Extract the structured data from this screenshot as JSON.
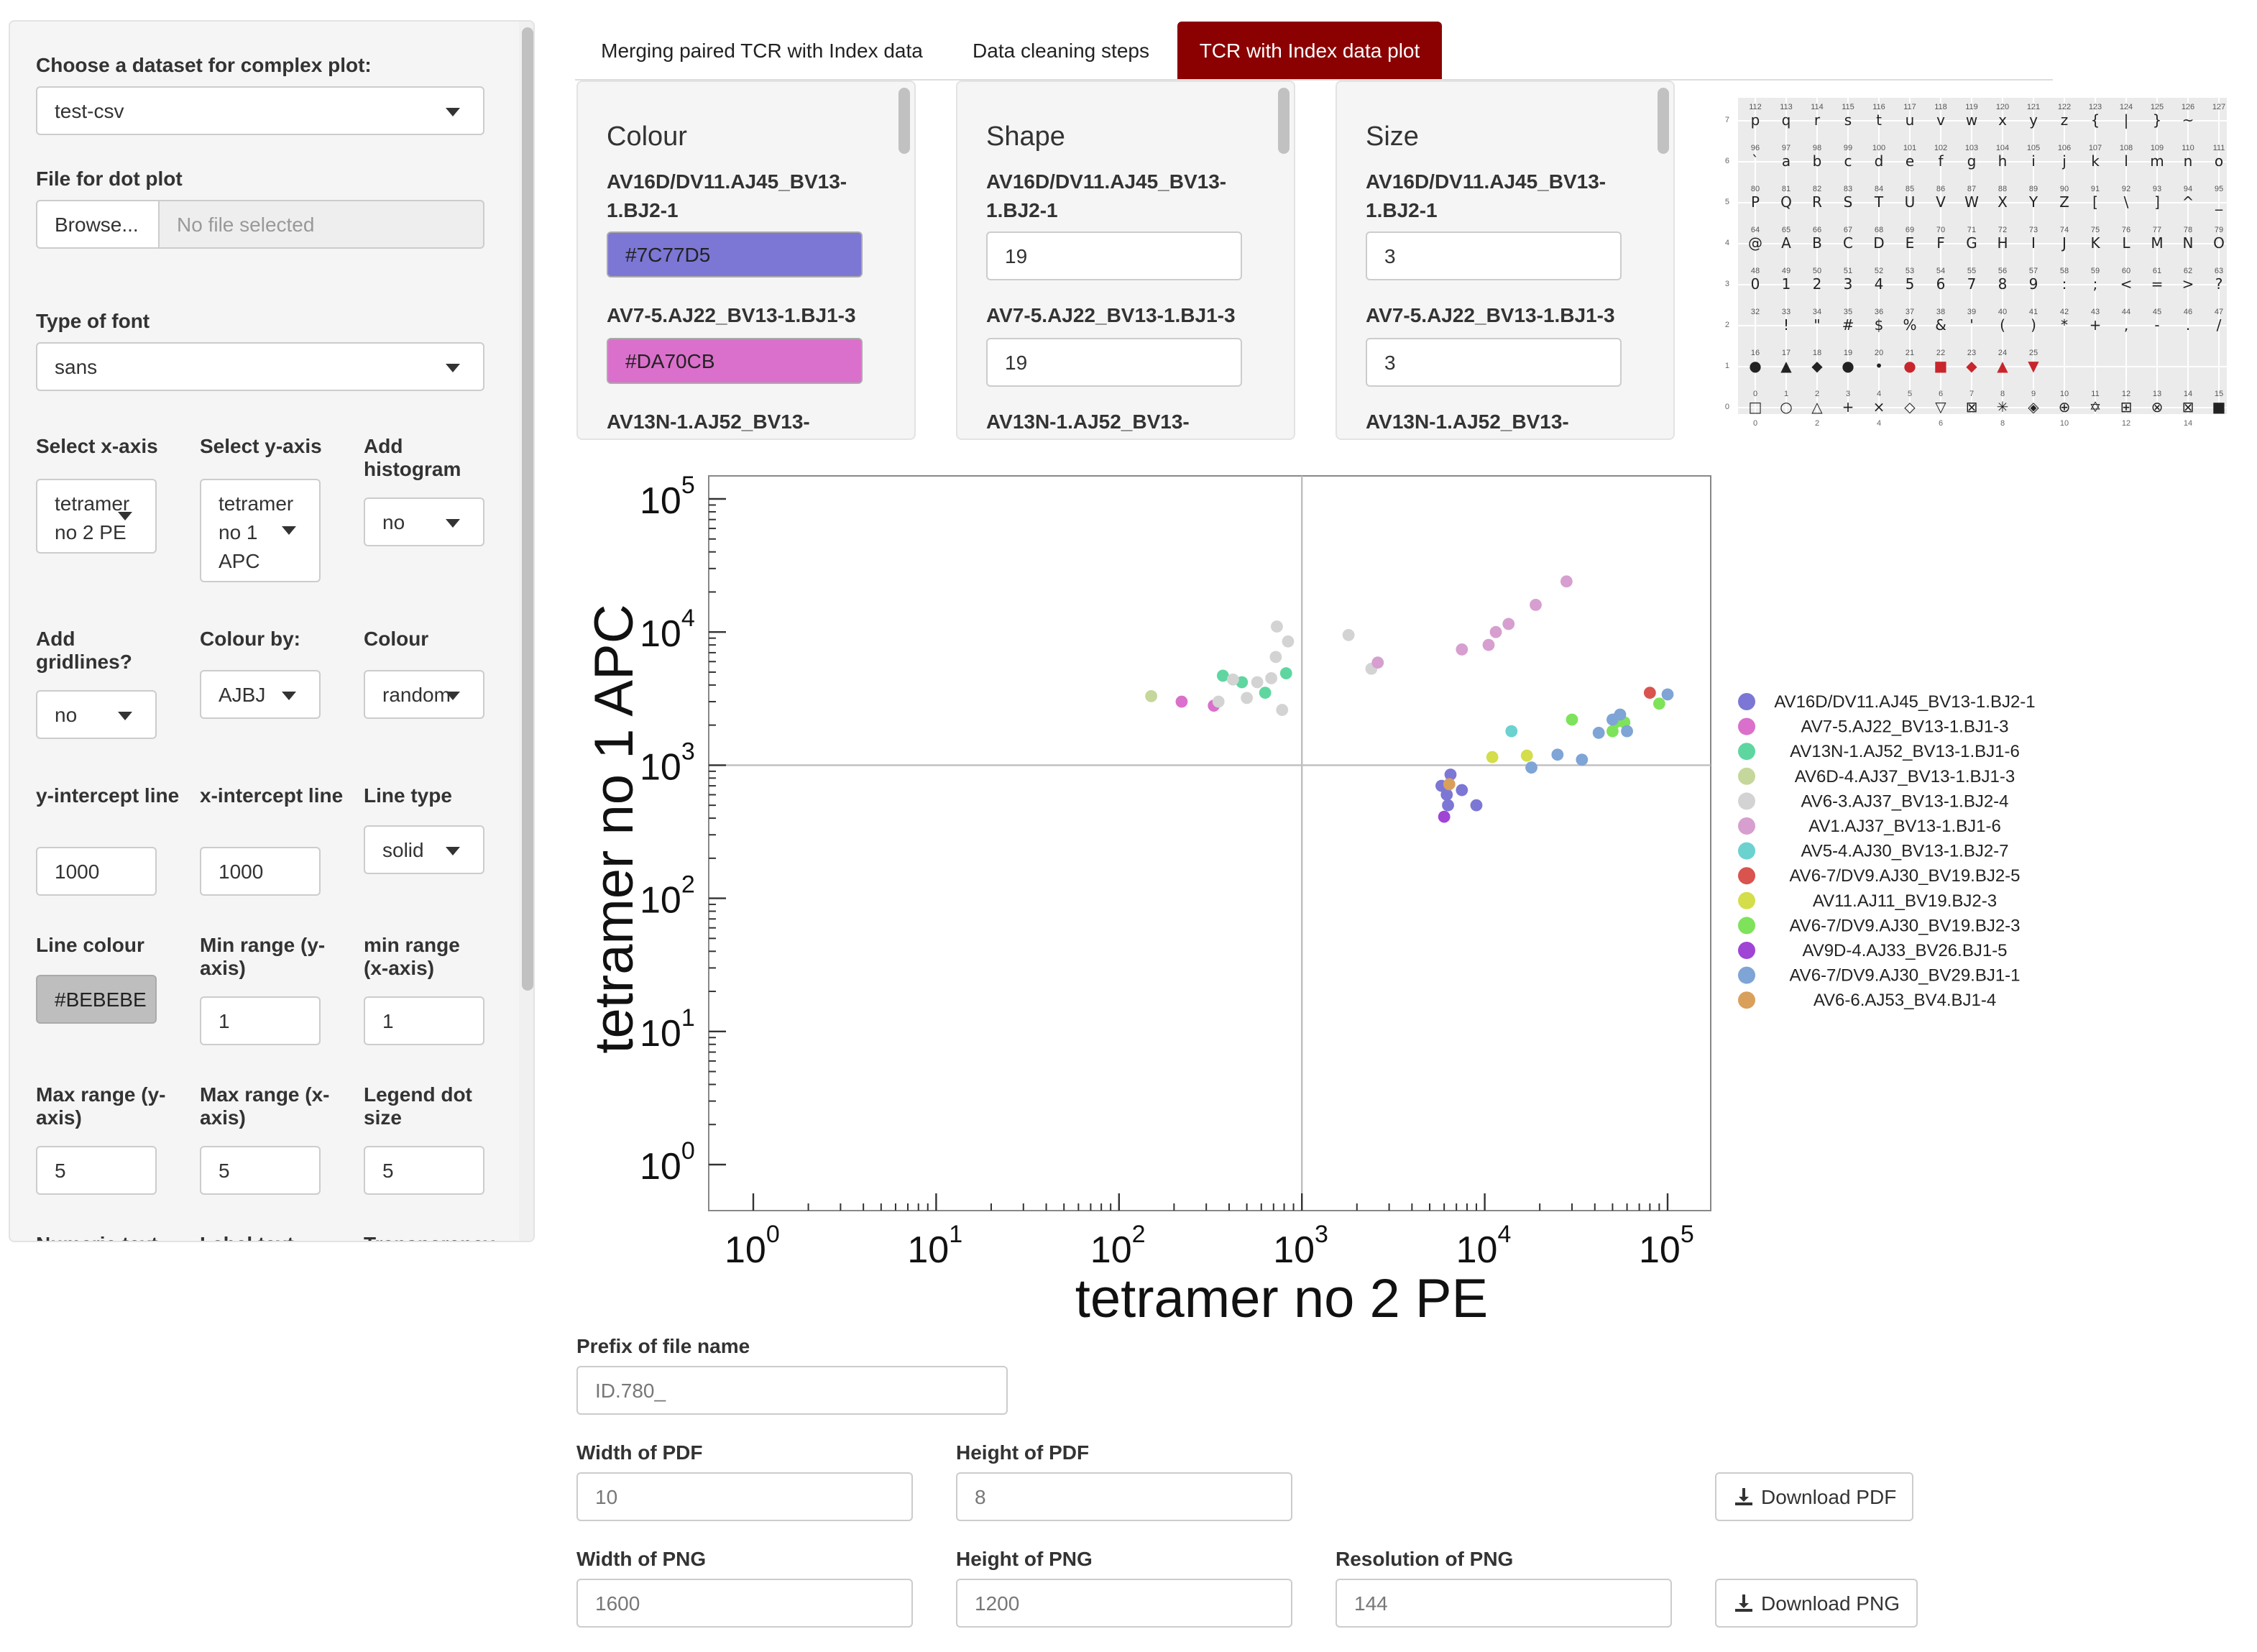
{
  "sidebar": {
    "dataset_label": "Choose a dataset for complex plot:",
    "dataset_value": "test-csv",
    "dotplot_label": "File for dot plot",
    "browse_label": "Browse...",
    "file_placeholder": "No file selected",
    "font_label": "Type of font",
    "font_value": "sans",
    "xaxis_label": "Select x-axis",
    "xaxis_value": "tetramer no 2 PE",
    "yaxis_label": "Select y-axis",
    "yaxis_value": "tetramer no 1 APC",
    "hist_label": "Add histogram",
    "hist_value": "no",
    "grid_label": "Add gridlines?",
    "grid_value": "no",
    "colourby_label": "Colour by:",
    "colourby_value": "AJBJ",
    "colour_label": "Colour",
    "colour_value": "random",
    "yint_label": "y-intercept line",
    "yint_value": "1000",
    "xint_label": "x-intercept line",
    "xint_value": "1000",
    "linetype_label": "Line type",
    "linetype_value": "solid",
    "linecolour_label": "Line colour",
    "linecolour_value": "#BEBEBE",
    "miny_label": "Min range (y-axis)",
    "miny_value": "1",
    "minx_label": "min range (x-axis)",
    "minx_value": "1",
    "maxy_label": "Max range (y-axis)",
    "maxy_value": "5",
    "maxx_label": "Max range (x-axis)",
    "maxx_value": "5",
    "legdot_label": "Legend dot size",
    "legdot_value": "5",
    "cut1": "Numeric text",
    "cut2": "Label text",
    "cut3": "Transparency"
  },
  "tabs": [
    "Merging paired TCR with Index data",
    "Data cleaning steps",
    "TCR with Index data plot"
  ],
  "panels": {
    "colour": {
      "title": "Colour",
      "items": [
        {
          "label": "AV16D/DV11.AJ45_BV13-1.BJ2-1",
          "value": "#7C77D5",
          "color": "#7C77D5"
        },
        {
          "label": "AV7-5.AJ22_BV13-1.BJ1-3",
          "value": "#DA70CB",
          "color": "#DA70CB"
        }
      ],
      "cut": "AV13N-1.AJ52_BV13-"
    },
    "shape": {
      "title": "Shape",
      "items": [
        {
          "label": "AV16D/DV11.AJ45_BV13-1.BJ2-1",
          "value": "19"
        },
        {
          "label": "AV7-5.AJ22_BV13-1.BJ1-3",
          "value": "19"
        }
      ],
      "cut": "AV13N-1.AJ52_BV13-"
    },
    "size": {
      "title": "Size",
      "items": [
        {
          "label": "AV16D/DV11.AJ45_BV13-1.BJ2-1",
          "value": "3"
        },
        {
          "label": "AV7-5.AJ22_BV13-1.BJ1-3",
          "value": "3"
        }
      ],
      "cut": "AV13N-1.AJ52_BV13-"
    }
  },
  "pch_ref": {
    "row_labels": [
      "7",
      "6",
      "5",
      "4",
      "3",
      "2",
      "1",
      "0"
    ],
    "col_labels": [
      "0",
      "2",
      "4",
      "6",
      "8",
      "10",
      "12",
      "14"
    ],
    "rows": [
      {
        "nums": [
          "112",
          "113",
          "114",
          "115",
          "116",
          "117",
          "118",
          "119",
          "120",
          "121",
          "122",
          "123",
          "124",
          "125",
          "126",
          "127"
        ],
        "chars": [
          "p",
          "q",
          "r",
          "s",
          "t",
          "u",
          "v",
          "w",
          "x",
          "y",
          "z",
          "{",
          "|",
          "}",
          "~",
          ""
        ]
      },
      {
        "nums": [
          "96",
          "97",
          "98",
          "99",
          "100",
          "101",
          "102",
          "103",
          "104",
          "105",
          "106",
          "107",
          "108",
          "109",
          "110",
          "111"
        ],
        "chars": [
          "`",
          "a",
          "b",
          "c",
          "d",
          "e",
          "f",
          "g",
          "h",
          "i",
          "j",
          "k",
          "l",
          "m",
          "n",
          "o"
        ]
      },
      {
        "nums": [
          "80",
          "81",
          "82",
          "83",
          "84",
          "85",
          "86",
          "87",
          "88",
          "89",
          "90",
          "91",
          "92",
          "93",
          "94",
          "95"
        ],
        "chars": [
          "P",
          "Q",
          "R",
          "S",
          "T",
          "U",
          "V",
          "W",
          "X",
          "Y",
          "Z",
          "[",
          "\\",
          "]",
          "^",
          "_"
        ]
      },
      {
        "nums": [
          "64",
          "65",
          "66",
          "67",
          "68",
          "69",
          "70",
          "71",
          "72",
          "73",
          "74",
          "75",
          "76",
          "77",
          "78",
          "79"
        ],
        "chars": [
          "@",
          "A",
          "B",
          "C",
          "D",
          "E",
          "F",
          "G",
          "H",
          "I",
          "J",
          "K",
          "L",
          "M",
          "N",
          "O"
        ]
      },
      {
        "nums": [
          "48",
          "49",
          "50",
          "51",
          "52",
          "53",
          "54",
          "55",
          "56",
          "57",
          "58",
          "59",
          "60",
          "61",
          "62",
          "63"
        ],
        "chars": [
          "0",
          "1",
          "2",
          "3",
          "4",
          "5",
          "6",
          "7",
          "8",
          "9",
          ":",
          ";",
          "<",
          "=",
          ">",
          "?"
        ]
      },
      {
        "nums": [
          "32",
          "33",
          "34",
          "35",
          "36",
          "37",
          "38",
          "39",
          "40",
          "41",
          "42",
          "43",
          "44",
          "45",
          "46",
          "47"
        ],
        "chars": [
          "",
          "!",
          "\"",
          "#",
          "$",
          "%",
          "&",
          "'",
          "(",
          ")",
          "*",
          "+",
          ",",
          "-",
          ".",
          "/"
        ]
      },
      {
        "nums": [
          "16",
          "17",
          "18",
          "19",
          "20",
          "21",
          "22",
          "23",
          "24",
          "25",
          "",
          "",
          "",
          "",
          "",
          ""
        ],
        "chars": [
          "●",
          "▲",
          "◆",
          "●",
          "•",
          "●",
          "■",
          "◆",
          "▲",
          "▼",
          "",
          "",
          "",
          "",
          "",
          ""
        ]
      },
      {
        "nums": [
          "0",
          "1",
          "2",
          "3",
          "4",
          "5",
          "6",
          "7",
          "8",
          "9",
          "10",
          "11",
          "12",
          "13",
          "14",
          "15"
        ],
        "chars": [
          "□",
          "○",
          "△",
          "+",
          "×",
          "◇",
          "▽",
          "⊠",
          "✳",
          "◈",
          "⊕",
          "✡",
          "⊞",
          "⊗",
          "⊠",
          "■"
        ]
      }
    ]
  },
  "chart_data": {
    "type": "scatter",
    "xlabel": "tetramer no 2 PE",
    "ylabel": "tetramer no 1 APC",
    "xscale": "log10",
    "yscale": "log10",
    "xlim": [
      1,
      100000
    ],
    "ylim": [
      1,
      100000
    ],
    "x_ticks": [
      {
        "base": "10",
        "exp": "0",
        "value": 1
      },
      {
        "base": "10",
        "exp": "1",
        "value": 10
      },
      {
        "base": "10",
        "exp": "2",
        "value": 100
      },
      {
        "base": "10",
        "exp": "3",
        "value": 1000
      },
      {
        "base": "10",
        "exp": "4",
        "value": 10000
      },
      {
        "base": "10",
        "exp": "5",
        "value": 100000
      }
    ],
    "y_ticks": [
      {
        "base": "10",
        "exp": "0",
        "value": 1
      },
      {
        "base": "10",
        "exp": "1",
        "value": 10
      },
      {
        "base": "10",
        "exp": "2",
        "value": 100
      },
      {
        "base": "10",
        "exp": "3",
        "value": 1000
      },
      {
        "base": "10",
        "exp": "4",
        "value": 10000
      },
      {
        "base": "10",
        "exp": "5",
        "value": 100000
      }
    ],
    "hline": 1000,
    "vline": 1000,
    "line_color": "#BEBEBE",
    "grid": false,
    "legend_position": "right",
    "series": [
      {
        "name": "AV16D/DV11.AJ45_BV13-1.BJ2-1",
        "color": "#7C77D5",
        "points": [
          [
            5800,
            700
          ],
          [
            6200,
            600
          ],
          [
            6500,
            850
          ],
          [
            7500,
            650
          ],
          [
            9000,
            500
          ],
          [
            6300,
            500
          ]
        ]
      },
      {
        "name": "AV7-5.AJ22_BV13-1.BJ1-3",
        "color": "#DA70CB",
        "points": [
          [
            220,
            3000
          ],
          [
            330,
            2800
          ]
        ]
      },
      {
        "name": "AV13N-1.AJ52_BV13-1.BJ1-6",
        "color": "#5FD6A0",
        "points": [
          [
            370,
            4700
          ],
          [
            470,
            4200
          ],
          [
            630,
            3500
          ],
          [
            820,
            4900
          ]
        ]
      },
      {
        "name": "AV6D-4.AJ37_BV13-1.BJ1-3",
        "color": "#C5D79A",
        "points": [
          [
            150,
            3300
          ]
        ]
      },
      {
        "name": "AV6-3.AJ37_BV13-1.BJ2-4",
        "color": "#D3D3D3",
        "points": [
          [
            350,
            3000
          ],
          [
            420,
            4400
          ],
          [
            500,
            3200
          ],
          [
            570,
            4200
          ],
          [
            680,
            4500
          ],
          [
            720,
            6500
          ],
          [
            730,
            11000
          ],
          [
            840,
            8500
          ],
          [
            780,
            2600
          ],
          [
            1800,
            9500
          ],
          [
            2400,
            5300
          ]
        ]
      },
      {
        "name": "AV1.AJ37_BV13-1.BJ1-6",
        "color": "#D69FCF",
        "points": [
          [
            2600,
            5900
          ],
          [
            7500,
            7400
          ],
          [
            10500,
            8000
          ],
          [
            11500,
            10000
          ],
          [
            13500,
            11500
          ],
          [
            19000,
            16000
          ],
          [
            28000,
            24000
          ]
        ]
      },
      {
        "name": "AV5-4.AJ30_BV13-1.BJ2-7",
        "color": "#6BD2D0",
        "points": [
          [
            14000,
            1800
          ]
        ]
      },
      {
        "name": "AV6-7/DV9.AJ30_BV19.BJ2-5",
        "color": "#D9534F",
        "points": [
          [
            80000,
            3500
          ]
        ]
      },
      {
        "name": "AV11.AJ11_BV19.BJ2-3",
        "color": "#D3DE4A",
        "points": [
          [
            11000,
            1150
          ],
          [
            17000,
            1180
          ]
        ]
      },
      {
        "name": "AV6-7/DV9.AJ30_BV19.BJ2-3",
        "color": "#7EE35A",
        "points": [
          [
            50000,
            1800
          ],
          [
            52000,
            2100
          ],
          [
            54000,
            2300
          ],
          [
            58000,
            2100
          ],
          [
            90000,
            2900
          ],
          [
            30000,
            2200
          ]
        ]
      },
      {
        "name": "AV9D-4.AJ33_BV26.BJ1-5",
        "color": "#A044D6",
        "points": [
          [
            6000,
            410
          ]
        ]
      },
      {
        "name": "AV6-7/DV9.AJ30_BV29.BJ1-1",
        "color": "#7FA4D6",
        "points": [
          [
            18000,
            960
          ],
          [
            25000,
            1200
          ],
          [
            34000,
            1100
          ],
          [
            42000,
            1750
          ],
          [
            50000,
            2200
          ],
          [
            55000,
            2400
          ],
          [
            60000,
            1800
          ],
          [
            100000,
            3400
          ]
        ]
      },
      {
        "name": "AV6-6.AJ53_BV4.BJ1-4",
        "color": "#D9A05B",
        "points": [
          [
            6400,
            720
          ]
        ]
      }
    ]
  },
  "bottom": {
    "prefix_label": "Prefix of file name",
    "prefix_value": "ID.780_",
    "wpdf_label": "Width of PDF",
    "wpdf_value": "10",
    "hpdf_label": "Height of PDF",
    "hpdf_value": "8",
    "dl_pdf": "Download PDF",
    "wpng_label": "Width of PNG",
    "wpng_value": "1600",
    "hpng_label": "Height of PNG",
    "hpng_value": "1200",
    "rpng_label": "Resolution of PNG",
    "rpng_value": "144",
    "dl_png": "Download PNG"
  }
}
